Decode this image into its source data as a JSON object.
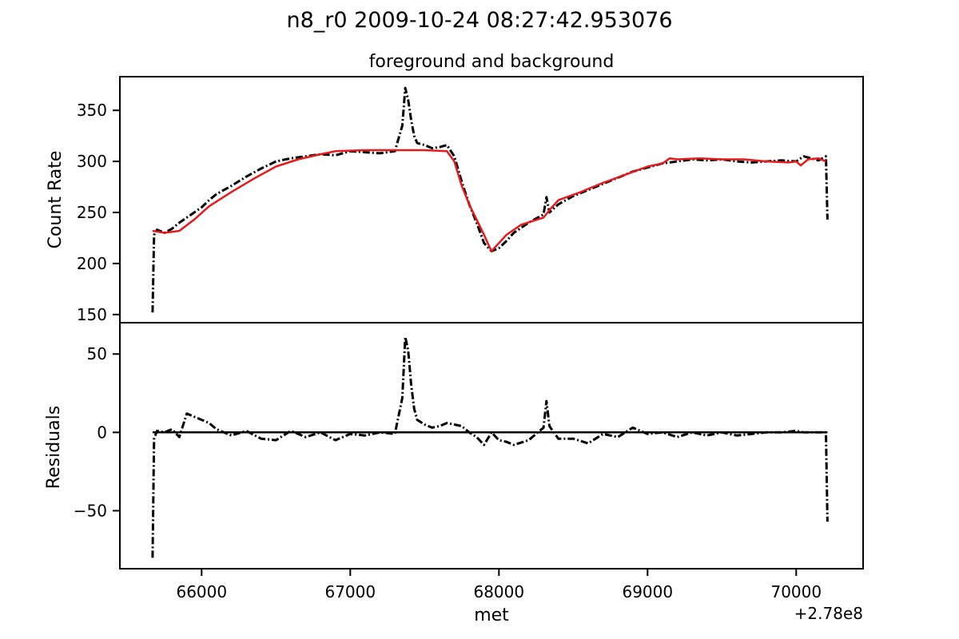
{
  "figure": {
    "suptitle": "n8_r0 2009-10-24 08:27:42.953076",
    "subtitle": "foreground and background",
    "offset_text": "+2.78e8"
  },
  "chart_data": [
    {
      "type": "line",
      "panel": "top",
      "title": "foreground and background",
      "ylabel": "Count Rate",
      "xlabel": "",
      "xlim": [
        65450,
        70450
      ],
      "ylim": [
        142,
        383
      ],
      "yticks": [
        150,
        200,
        250,
        300,
        350
      ],
      "ytick_labels": [
        "150",
        "200",
        "250",
        "300",
        "350"
      ],
      "series": [
        {
          "color": "#000000",
          "style": "dashdot",
          "x": [
            65670,
            65680,
            65700,
            65750,
            65800,
            65850,
            65900,
            65950,
            66000,
            66050,
            66100,
            66200,
            66300,
            66400,
            66500,
            66600,
            66700,
            66800,
            66900,
            67000,
            67100,
            67200,
            67300,
            67350,
            67370,
            67390,
            67410,
            67430,
            67450,
            67500,
            67550,
            67600,
            67650,
            67700,
            67750,
            67800,
            67850,
            67900,
            67950,
            68000,
            68050,
            68100,
            68200,
            68300,
            68320,
            68340,
            68400,
            68500,
            68600,
            68700,
            68800,
            68900,
            69000,
            69100,
            69200,
            69300,
            69400,
            69500,
            69600,
            69700,
            69800,
            69900,
            70000,
            70050,
            70100,
            70150,
            70200,
            70210
          ],
          "y": [
            152,
            228,
            233,
            230,
            234,
            240,
            245,
            250,
            255,
            262,
            268,
            276,
            285,
            293,
            300,
            303,
            305,
            307,
            306,
            310,
            309,
            308,
            310,
            335,
            372,
            360,
            340,
            325,
            318,
            316,
            313,
            314,
            316,
            305,
            280,
            258,
            240,
            220,
            212,
            215,
            222,
            230,
            240,
            248,
            265,
            250,
            258,
            266,
            272,
            278,
            284,
            290,
            294,
            298,
            300,
            302,
            301,
            302,
            300,
            299,
            300,
            301,
            300,
            305,
            303,
            301,
            305,
            243
          ]
        },
        {
          "color": "#e41a1c",
          "style": "solid",
          "x": [
            65670,
            65750,
            65850,
            65950,
            66050,
            66200,
            66350,
            66500,
            66650,
            66800,
            66900,
            67100,
            67300,
            67500,
            67650,
            67700,
            67750,
            67800,
            67850,
            67900,
            67950,
            68000,
            68050,
            68150,
            68300,
            68350,
            68400,
            68550,
            68700,
            68850,
            69000,
            69100,
            69150,
            69200,
            69350,
            69500,
            69650,
            69800,
            69950,
            70000,
            70030,
            70080,
            70150,
            70200
          ],
          "y": [
            232,
            230,
            232,
            243,
            256,
            270,
            283,
            295,
            302,
            307,
            310,
            311,
            311,
            311,
            310,
            300,
            276,
            258,
            243,
            228,
            212,
            220,
            228,
            238,
            245,
            254,
            262,
            270,
            279,
            287,
            295,
            298,
            303,
            302,
            303,
            302,
            302,
            300,
            299,
            300,
            296,
            302,
            303,
            300
          ]
        }
      ]
    },
    {
      "type": "line",
      "panel": "bottom",
      "title": "",
      "ylabel": "Residuals",
      "xlabel": "met",
      "xlim": [
        65450,
        70450
      ],
      "ylim": [
        -87,
        70
      ],
      "yticks": [
        -50,
        0,
        50
      ],
      "ytick_labels": [
        "−50",
        "0",
        "50"
      ],
      "xticks": [
        66000,
        67000,
        68000,
        69000,
        70000
      ],
      "xtick_labels": [
        "66000",
        "67000",
        "68000",
        "69000",
        "70000"
      ],
      "series": [
        {
          "color": "#000000",
          "style": "dashdot",
          "x": [
            65670,
            65680,
            65700,
            65750,
            65800,
            65850,
            65900,
            65950,
            66000,
            66050,
            66100,
            66200,
            66300,
            66400,
            66500,
            66600,
            66700,
            66800,
            66900,
            67000,
            67100,
            67200,
            67300,
            67350,
            67370,
            67390,
            67410,
            67430,
            67450,
            67500,
            67550,
            67600,
            67650,
            67700,
            67750,
            67800,
            67850,
            67900,
            67950,
            68000,
            68050,
            68100,
            68200,
            68300,
            68320,
            68340,
            68400,
            68500,
            68600,
            68700,
            68800,
            68900,
            69000,
            69100,
            69200,
            69300,
            69400,
            69500,
            69600,
            69700,
            69800,
            69900,
            70000,
            70050,
            70100,
            70150,
            70200,
            70210
          ],
          "y": [
            -80,
            -4,
            1,
            0,
            2,
            -3,
            12,
            10,
            8,
            6,
            2,
            -2,
            1,
            -4,
            -5,
            1,
            -3,
            0,
            -5,
            -1,
            -2,
            0,
            -1,
            22,
            61,
            52,
            30,
            15,
            8,
            5,
            3,
            4,
            6,
            5,
            4,
            0,
            -3,
            -8,
            0,
            -5,
            -6,
            -8,
            -5,
            3,
            20,
            4,
            -4,
            -4,
            -7,
            -1,
            -3,
            3,
            -1,
            0,
            -3,
            0,
            -2,
            0,
            -2,
            -1,
            0,
            0,
            1,
            0,
            0,
            0,
            0,
            -57
          ]
        },
        {
          "color": "#000000",
          "style": "solid",
          "x": [
            65670,
            70210
          ],
          "y": [
            0,
            0
          ]
        }
      ]
    }
  ]
}
